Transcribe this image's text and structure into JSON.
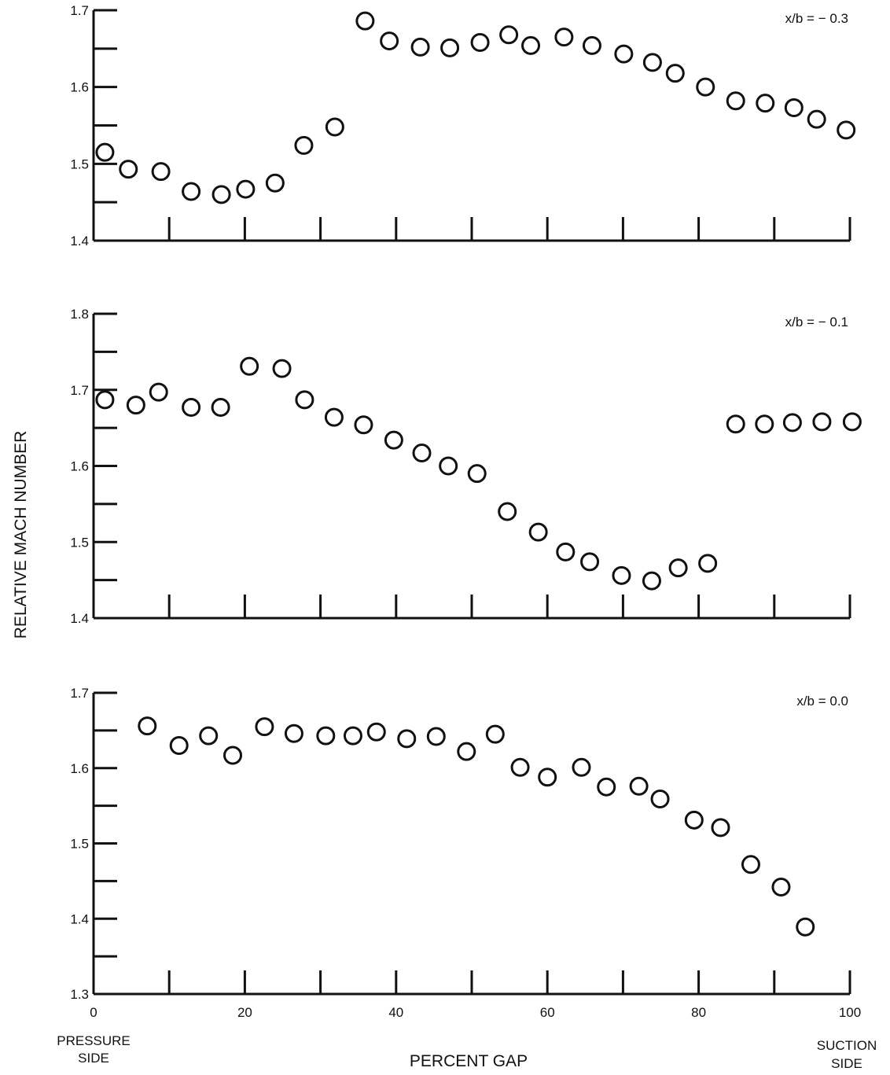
{
  "chart_data": {
    "type": "scatter",
    "ylabel": "RELATIVE MACH NUMBER",
    "xlabel": "PERCENT GAP",
    "xlim": [
      0,
      100
    ],
    "x_ticks": [
      0,
      20,
      40,
      60,
      80,
      100
    ],
    "x_end_labels": {
      "left": [
        "PRESSURE",
        "SIDE"
      ],
      "right": [
        "SUCTION",
        "SIDE"
      ]
    },
    "grid": false,
    "panels": [
      {
        "annotation": "x/b = − 0.3",
        "ylim": [
          1.4,
          1.7
        ],
        "y_ticks": [
          1.4,
          1.5,
          1.6,
          1.7
        ],
        "points": [
          {
            "x": 1.5,
            "y": 1.515
          },
          {
            "x": 4.6,
            "y": 1.493
          },
          {
            "x": 8.9,
            "y": 1.49
          },
          {
            "x": 12.9,
            "y": 1.464
          },
          {
            "x": 16.9,
            "y": 1.46
          },
          {
            "x": 20.1,
            "y": 1.467
          },
          {
            "x": 24.0,
            "y": 1.475
          },
          {
            "x": 27.8,
            "y": 1.524
          },
          {
            "x": 31.9,
            "y": 1.548
          },
          {
            "x": 35.9,
            "y": 1.686
          },
          {
            "x": 39.1,
            "y": 1.66
          },
          {
            "x": 43.2,
            "y": 1.652
          },
          {
            "x": 47.1,
            "y": 1.651
          },
          {
            "x": 51.1,
            "y": 1.658
          },
          {
            "x": 54.9,
            "y": 1.668
          },
          {
            "x": 57.8,
            "y": 1.654
          },
          {
            "x": 62.2,
            "y": 1.665
          },
          {
            "x": 65.9,
            "y": 1.654
          },
          {
            "x": 70.1,
            "y": 1.643
          },
          {
            "x": 73.9,
            "y": 1.632
          },
          {
            "x": 76.9,
            "y": 1.618
          },
          {
            "x": 80.9,
            "y": 1.6
          },
          {
            "x": 84.9,
            "y": 1.582
          },
          {
            "x": 88.8,
            "y": 1.579
          },
          {
            "x": 92.6,
            "y": 1.573
          },
          {
            "x": 95.6,
            "y": 1.558
          },
          {
            "x": 99.5,
            "y": 1.544
          }
        ]
      },
      {
        "annotation": "x/b = − 0.1",
        "ylim": [
          1.4,
          1.8
        ],
        "y_ticks": [
          1.4,
          1.5,
          1.6,
          1.7,
          1.8
        ],
        "points": [
          {
            "x": 1.5,
            "y": 1.687
          },
          {
            "x": 5.6,
            "y": 1.68
          },
          {
            "x": 8.6,
            "y": 1.697
          },
          {
            "x": 12.9,
            "y": 1.677
          },
          {
            "x": 16.8,
            "y": 1.677
          },
          {
            "x": 20.6,
            "y": 1.731
          },
          {
            "x": 24.9,
            "y": 1.728
          },
          {
            "x": 27.9,
            "y": 1.687
          },
          {
            "x": 31.8,
            "y": 1.664
          },
          {
            "x": 35.7,
            "y": 1.654
          },
          {
            "x": 39.7,
            "y": 1.634
          },
          {
            "x": 43.4,
            "y": 1.617
          },
          {
            "x": 46.9,
            "y": 1.6
          },
          {
            "x": 50.7,
            "y": 1.59
          },
          {
            "x": 54.7,
            "y": 1.54
          },
          {
            "x": 58.8,
            "y": 1.513
          },
          {
            "x": 62.4,
            "y": 1.487
          },
          {
            "x": 65.6,
            "y": 1.474
          },
          {
            "x": 69.8,
            "y": 1.456
          },
          {
            "x": 73.8,
            "y": 1.449
          },
          {
            "x": 77.3,
            "y": 1.466
          },
          {
            "x": 81.2,
            "y": 1.472
          },
          {
            "x": 84.9,
            "y": 1.655
          },
          {
            "x": 88.7,
            "y": 1.655
          },
          {
            "x": 92.4,
            "y": 1.657
          },
          {
            "x": 96.3,
            "y": 1.658
          },
          {
            "x": 100.3,
            "y": 1.658
          }
        ]
      },
      {
        "annotation": "x/b = 0.0",
        "ylim": [
          1.3,
          1.7
        ],
        "y_ticks": [
          1.3,
          1.4,
          1.5,
          1.6,
          1.7
        ],
        "points": [
          {
            "x": 7.1,
            "y": 1.656
          },
          {
            "x": 11.3,
            "y": 1.63
          },
          {
            "x": 15.2,
            "y": 1.643
          },
          {
            "x": 18.4,
            "y": 1.617
          },
          {
            "x": 22.6,
            "y": 1.655
          },
          {
            "x": 26.5,
            "y": 1.646
          },
          {
            "x": 30.7,
            "y": 1.643
          },
          {
            "x": 34.3,
            "y": 1.643
          },
          {
            "x": 37.4,
            "y": 1.648
          },
          {
            "x": 41.4,
            "y": 1.639
          },
          {
            "x": 45.3,
            "y": 1.642
          },
          {
            "x": 49.3,
            "y": 1.622
          },
          {
            "x": 53.1,
            "y": 1.645
          },
          {
            "x": 56.4,
            "y": 1.601
          },
          {
            "x": 60.0,
            "y": 1.588
          },
          {
            "x": 64.5,
            "y": 1.601
          },
          {
            "x": 67.8,
            "y": 1.575
          },
          {
            "x": 72.1,
            "y": 1.576
          },
          {
            "x": 74.9,
            "y": 1.559
          },
          {
            "x": 79.4,
            "y": 1.531
          },
          {
            "x": 82.9,
            "y": 1.521
          },
          {
            "x": 86.9,
            "y": 1.472
          },
          {
            "x": 90.9,
            "y": 1.442
          },
          {
            "x": 94.1,
            "y": 1.389
          }
        ]
      }
    ]
  }
}
